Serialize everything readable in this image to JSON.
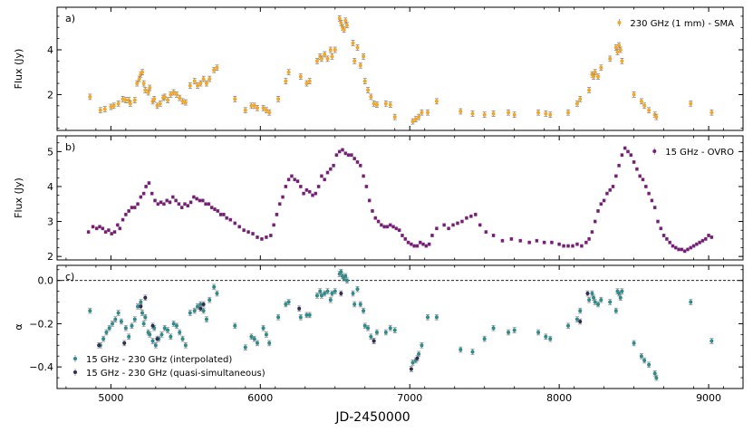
{
  "colors": {
    "sma": "#f5a623",
    "ovro": "#7b1a7b",
    "interp": "#2a8c8c",
    "quasi": "#2c2c55",
    "errbar": "#888888"
  },
  "xlabel": "JD-2450000",
  "xlim": [
    4640,
    9230
  ],
  "xticks": [
    "5000",
    "6000",
    "7000",
    "8000",
    "9000"
  ],
  "chart_data": [
    {
      "type": "scatter",
      "label": "a)",
      "ylabel": "Flux (Jy)",
      "ylim": [
        0.4,
        5.9
      ],
      "yticks": [
        "2",
        "4"
      ],
      "legend": "230 GHz (1 mm) - SMA",
      "series": [
        {
          "name": "230 GHz (1 mm) - SMA",
          "x": [
            4860,
            4930,
            4960,
            5000,
            5020,
            5050,
            5080,
            5100,
            5120,
            5130,
            5160,
            5175,
            5190,
            5200,
            5210,
            5220,
            5230,
            5250,
            5260,
            5280,
            5290,
            5310,
            5330,
            5350,
            5360,
            5380,
            5400,
            5420,
            5440,
            5460,
            5480,
            5500,
            5530,
            5560,
            5580,
            5600,
            5620,
            5640,
            5660,
            5690,
            5710,
            5830,
            5900,
            5940,
            5960,
            5980,
            6020,
            6040,
            6060,
            6120,
            6170,
            6190,
            6270,
            6310,
            6330,
            6380,
            6400,
            6410,
            6430,
            6450,
            6470,
            6480,
            6500,
            6530,
            6540,
            6550,
            6560,
            6570,
            6580,
            6620,
            6630,
            6650,
            6670,
            6690,
            6700,
            6720,
            6740,
            6760,
            6780,
            6840,
            6870,
            6900,
            7020,
            7040,
            7060,
            7080,
            7120,
            7180,
            7340,
            7420,
            7500,
            7560,
            7660,
            7700,
            7860,
            7910,
            7940,
            8060,
            8120,
            8140,
            8200,
            8220,
            8230,
            8240,
            8260,
            8280,
            8340,
            8380,
            8390,
            8400,
            8410,
            8420,
            8500,
            8550,
            8570,
            8600,
            8640,
            8650,
            8880,
            9020
          ],
          "y": [
            1.9,
            1.3,
            1.35,
            1.45,
            1.5,
            1.6,
            1.8,
            1.75,
            1.75,
            1.6,
            1.75,
            2.5,
            2.7,
            2.9,
            3.0,
            2.5,
            2.2,
            2.1,
            2.3,
            1.7,
            1.8,
            1.5,
            1.6,
            1.85,
            1.9,
            1.75,
            2.0,
            2.1,
            2.0,
            1.85,
            1.7,
            1.65,
            2.4,
            2.6,
            2.4,
            2.5,
            2.7,
            2.5,
            2.7,
            3.1,
            3.2,
            1.8,
            1.3,
            1.5,
            1.5,
            1.4,
            1.4,
            1.3,
            1.2,
            1.8,
            2.6,
            3.0,
            2.8,
            2.5,
            2.6,
            3.5,
            3.7,
            3.6,
            3.8,
            3.6,
            4.0,
            3.7,
            4.0,
            5.4,
            5.2,
            5.0,
            4.9,
            5.3,
            5.1,
            4.3,
            3.5,
            4.1,
            3.3,
            3.7,
            2.6,
            2.2,
            1.9,
            1.6,
            1.55,
            1.6,
            1.55,
            1.0,
            0.8,
            0.9,
            1.0,
            1.2,
            1.2,
            1.7,
            1.25,
            1.15,
            1.1,
            1.15,
            1.2,
            1.1,
            1.2,
            1.15,
            1.1,
            1.2,
            1.6,
            1.8,
            2.2,
            2.9,
            2.8,
            3.0,
            2.8,
            3.2,
            3.6,
            4.1,
            3.9,
            4.2,
            4.0,
            3.5,
            2.0,
            1.7,
            1.5,
            1.3,
            1.1,
            1.0,
            1.6,
            1.2
          ]
        }
      ]
    },
    {
      "type": "scatter",
      "label": "b)",
      "ylabel": "Flux (Jy)",
      "ylim": [
        1.9,
        5.45
      ],
      "yticks": [
        "2",
        "3",
        "4",
        "5"
      ],
      "legend": "15 GHz - OVRO",
      "series": [
        {
          "name": "15 GHz - OVRO",
          "x": [
            4850,
            4880,
            4905,
            4925,
            4945,
            4965,
            4985,
            5005,
            5025,
            5045,
            5060,
            5080,
            5100,
            5120,
            5140,
            5160,
            5180,
            5200,
            5220,
            5235,
            5255,
            5275,
            5295,
            5315,
            5335,
            5355,
            5375,
            5395,
            5415,
            5435,
            5455,
            5475,
            5495,
            5515,
            5535,
            5555,
            5575,
            5595,
            5615,
            5635,
            5655,
            5675,
            5695,
            5715,
            5735,
            5755,
            5775,
            5800,
            5830,
            5860,
            5890,
            5920,
            5950,
            5980,
            6010,
            6040,
            6070,
            6090,
            6110,
            6130,
            6150,
            6170,
            6190,
            6210,
            6230,
            6250,
            6270,
            6290,
            6310,
            6330,
            6350,
            6370,
            6390,
            6410,
            6430,
            6450,
            6470,
            6490,
            6510,
            6530,
            6550,
            6570,
            6590,
            6610,
            6630,
            6650,
            6670,
            6690,
            6710,
            6730,
            6750,
            6770,
            6790,
            6810,
            6830,
            6850,
            6870,
            6890,
            6910,
            6930,
            6950,
            6970,
            6990,
            7010,
            7030,
            7050,
            7070,
            7090,
            7110,
            7130,
            7150,
            7180,
            7230,
            7260,
            7290,
            7320,
            7350,
            7380,
            7410,
            7440,
            7470,
            7510,
            7560,
            7620,
            7680,
            7740,
            7800,
            7850,
            7900,
            7950,
            8000,
            8030,
            8060,
            8090,
            8120,
            8150,
            8180,
            8200,
            8220,
            8240,
            8260,
            8280,
            8300,
            8320,
            8340,
            8360,
            8380,
            8400,
            8420,
            8440,
            8460,
            8480,
            8500,
            8520,
            8540,
            8560,
            8580,
            8600,
            8620,
            8640,
            8660,
            8680,
            8700,
            8720,
            8740,
            8760,
            8780,
            8800,
            8820,
            8840,
            8860,
            8880,
            8900,
            8920,
            8940,
            8960,
            8980,
            9000,
            9020
          ],
          "y": [
            2.7,
            2.85,
            2.8,
            2.85,
            2.8,
            2.7,
            2.75,
            2.65,
            2.7,
            2.9,
            2.8,
            3.05,
            3.2,
            3.3,
            3.4,
            3.4,
            3.5,
            3.7,
            3.8,
            4.0,
            4.1,
            3.8,
            3.6,
            3.5,
            3.55,
            3.5,
            3.6,
            3.55,
            3.7,
            3.6,
            3.5,
            3.4,
            3.5,
            3.45,
            3.55,
            3.7,
            3.65,
            3.6,
            3.6,
            3.5,
            3.5,
            3.4,
            3.35,
            3.3,
            3.2,
            3.2,
            3.1,
            3.05,
            2.95,
            2.85,
            2.75,
            2.7,
            2.65,
            2.55,
            2.5,
            2.55,
            2.6,
            2.9,
            3.2,
            3.5,
            3.7,
            4.0,
            4.2,
            4.3,
            4.2,
            4.15,
            4.0,
            3.8,
            3.9,
            3.85,
            3.75,
            3.8,
            4.0,
            4.3,
            4.2,
            4.4,
            4.5,
            4.6,
            4.9,
            5.0,
            5.05,
            4.95,
            4.9,
            4.9,
            4.8,
            4.7,
            4.6,
            4.3,
            4.0,
            3.6,
            3.3,
            3.1,
            3.0,
            2.9,
            2.85,
            2.85,
            2.9,
            2.85,
            2.8,
            2.75,
            2.6,
            2.5,
            2.4,
            2.35,
            2.3,
            2.3,
            2.4,
            2.35,
            2.3,
            2.35,
            2.6,
            2.8,
            2.9,
            2.8,
            2.9,
            2.95,
            3.0,
            3.1,
            3.15,
            3.2,
            2.9,
            2.7,
            2.6,
            2.45,
            2.5,
            2.45,
            2.4,
            2.45,
            2.4,
            2.4,
            2.35,
            2.3,
            2.3,
            2.3,
            2.35,
            2.3,
            2.4,
            2.5,
            2.7,
            3.0,
            3.3,
            3.5,
            3.6,
            3.8,
            3.9,
            4.0,
            4.3,
            4.6,
            4.9,
            5.1,
            5.0,
            4.9,
            4.7,
            4.5,
            4.3,
            4.2,
            4.0,
            3.8,
            3.6,
            3.4,
            3.0,
            2.8,
            2.6,
            2.5,
            2.4,
            2.3,
            2.25,
            2.2,
            2.2,
            2.15,
            2.2,
            2.25,
            2.3,
            2.35,
            2.4,
            2.45,
            2.5,
            2.6,
            2.55
          ]
        }
      ]
    },
    {
      "type": "scatter",
      "label": "c)",
      "ylabel": "α",
      "ylim": [
        -0.5,
        0.07
      ],
      "yticks": [
        "0.0",
        "−0.2",
        "−0.4"
      ],
      "hline": 0.0,
      "legend": [
        "15 GHz - 230 GHz (interpolated)",
        "15 GHz - 230 GHz (quasi-simultaneous)"
      ],
      "series": [
        {
          "name": "15 GHz - 230 GHz (interpolated)",
          "x": [
            4860,
            4930,
            4950,
            4970,
            4990,
            5010,
            5030,
            5050,
            5070,
            5100,
            5120,
            5140,
            5160,
            5180,
            5200,
            5210,
            5220,
            5230,
            5250,
            5260,
            5280,
            5290,
            5300,
            5320,
            5340,
            5360,
            5380,
            5400,
            5420,
            5440,
            5460,
            5480,
            5500,
            5530,
            5560,
            5580,
            5600,
            5620,
            5640,
            5660,
            5690,
            5710,
            5830,
            5900,
            5940,
            5960,
            5980,
            6020,
            6040,
            6060,
            6120,
            6170,
            6190,
            6270,
            6310,
            6330,
            6380,
            6400,
            6410,
            6430,
            6450,
            6470,
            6480,
            6500,
            6530,
            6540,
            6550,
            6560,
            6570,
            6580,
            6620,
            6630,
            6650,
            6670,
            6690,
            6700,
            6720,
            6740,
            6760,
            6780,
            6840,
            6870,
            6900,
            7020,
            7040,
            7060,
            7080,
            7120,
            7180,
            7340,
            7420,
            7500,
            7560,
            7660,
            7700,
            7860,
            7910,
            7940,
            8060,
            8120,
            8140,
            8200,
            8220,
            8230,
            8240,
            8260,
            8280,
            8340,
            8380,
            8390,
            8400,
            8410,
            8420,
            8500,
            8550,
            8570,
            8600,
            8640,
            8650,
            8880,
            9020
          ],
          "y": [
            -0.14,
            -0.3,
            -0.27,
            -0.24,
            -0.22,
            -0.2,
            -0.18,
            -0.15,
            -0.19,
            -0.22,
            -0.26,
            -0.21,
            -0.18,
            -0.12,
            -0.1,
            -0.15,
            -0.2,
            -0.17,
            -0.24,
            -0.25,
            -0.28,
            -0.22,
            -0.3,
            -0.27,
            -0.25,
            -0.22,
            -0.23,
            -0.26,
            -0.2,
            -0.21,
            -0.24,
            -0.27,
            -0.3,
            -0.15,
            -0.14,
            -0.12,
            -0.11,
            -0.14,
            -0.18,
            -0.09,
            -0.03,
            -0.06,
            -0.21,
            -0.31,
            -0.26,
            -0.27,
            -0.29,
            -0.22,
            -0.25,
            -0.29,
            -0.17,
            -0.11,
            -0.1,
            -0.17,
            -0.16,
            -0.16,
            -0.07,
            -0.05,
            -0.07,
            -0.06,
            -0.05,
            -0.09,
            -0.06,
            -0.05,
            0.03,
            0.04,
            0.02,
            0.01,
            0.02,
            0.0,
            -0.06,
            -0.11,
            -0.04,
            -0.11,
            -0.14,
            -0.21,
            -0.22,
            -0.26,
            -0.28,
            -0.24,
            -0.24,
            -0.22,
            -0.23,
            -0.38,
            -0.37,
            -0.34,
            -0.3,
            -0.17,
            -0.17,
            -0.32,
            -0.33,
            -0.27,
            -0.22,
            -0.24,
            -0.23,
            -0.24,
            -0.26,
            -0.27,
            -0.21,
            -0.18,
            -0.14,
            -0.09,
            -0.06,
            -0.08,
            -0.1,
            -0.11,
            -0.09,
            -0.1,
            -0.14,
            -0.05,
            -0.06,
            -0.08,
            -0.05,
            -0.29,
            -0.35,
            -0.37,
            -0.39,
            -0.43,
            -0.45,
            -0.1,
            -0.28
          ]
        },
        {
          "name": "15 GHz - 230 GHz (quasi-simultaneous)",
          "x": [
            4920,
            5090,
            5200,
            5230,
            5280,
            5310,
            5600,
            5620,
            6260,
            6540,
            6760,
            7010,
            7050,
            8140,
            8190
          ],
          "y": [
            -0.3,
            -0.29,
            -0.12,
            -0.08,
            -0.21,
            -0.27,
            -0.13,
            -0.11,
            -0.13,
            -0.06,
            -0.28,
            -0.41,
            -0.36,
            -0.19,
            -0.06
          ]
        }
      ]
    }
  ]
}
